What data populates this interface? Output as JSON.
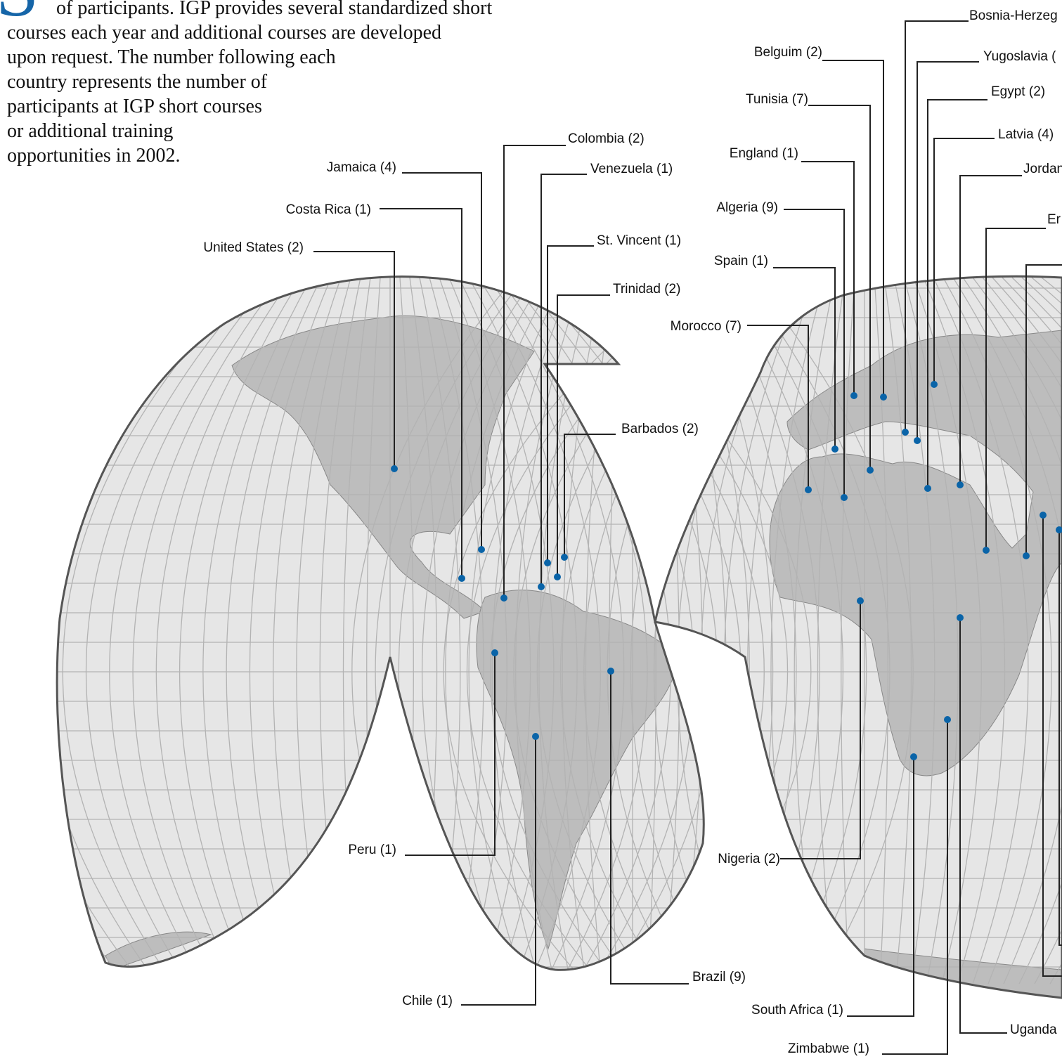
{
  "intro": {
    "drop_cap": "S",
    "lines": [
      "of participants. IGP provides several standardized short",
      "courses each year and additional courses are developed",
      "upon request. The number following each",
      "country represents the number of",
      "participants at IGP short courses",
      "or additional training",
      "opportunities in 2002."
    ]
  },
  "labels": [
    "Colombia (2)",
    "Jamaica (4)",
    "Venezuela (1)",
    "Costa Rica (1)",
    "St. Vincent (1)",
    "United States (2)",
    "Trinidad (2)",
    "Barbados (2)",
    "Peru (1)",
    "Chile (1)",
    "Brazil (9)",
    "Belguim (2)",
    "Bosnia-Herzeg",
    "Yugoslavia (",
    "Tunisia (7)",
    "Egypt (2)",
    "Latvia (4)",
    "England (1)",
    "Jordan",
    "Algeria (9)",
    "Er",
    "Spain (1)",
    "Morocco (7)",
    "Nigeria (2)",
    "South Africa (1)",
    "Zimbabwe (1)",
    "Uganda"
  ]
}
